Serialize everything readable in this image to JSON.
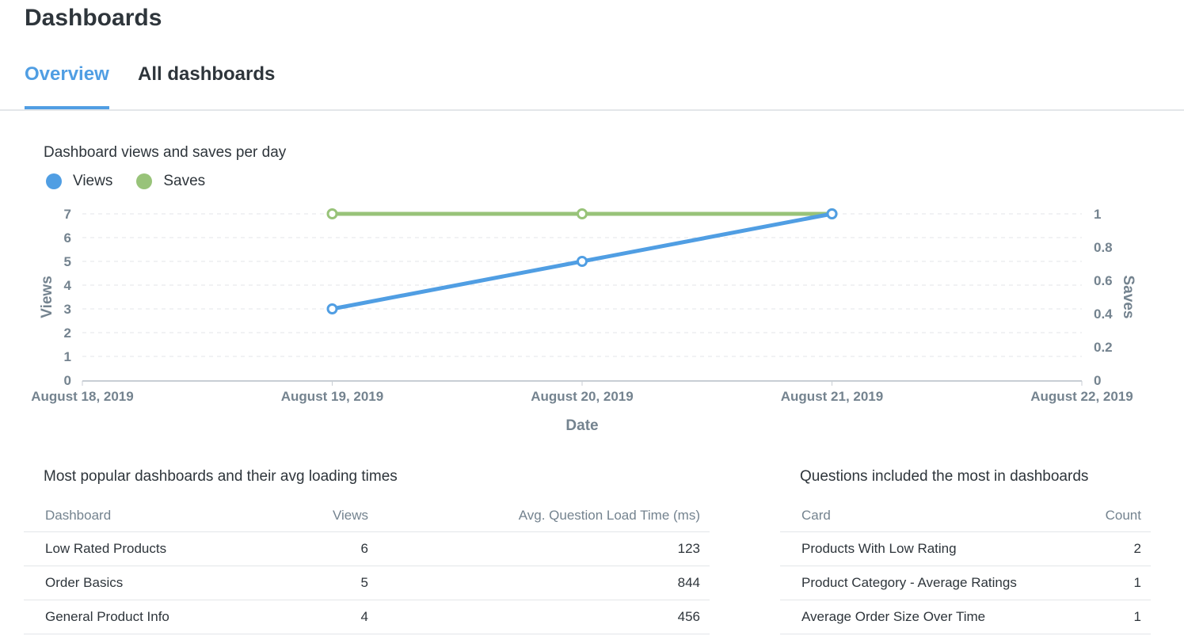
{
  "header": {
    "title": "Dashboards"
  },
  "tabs": [
    {
      "label": "Overview"
    },
    {
      "label": "All dashboards"
    }
  ],
  "chart_section": {
    "title": "Dashboard views and saves per day"
  },
  "colors": {
    "views": "#509ee3",
    "saves": "#98c379",
    "text": "#2e353b",
    "muted": "#74838f",
    "grid": "#e3e6e9"
  },
  "chart_data": {
    "type": "line",
    "title": "Dashboard views and saves per day",
    "xlabel": "Date",
    "x": [
      "August 18, 2019",
      "August 19, 2019",
      "August 20, 2019",
      "August 21, 2019",
      "August 22, 2019"
    ],
    "series": [
      {
        "name": "Views",
        "axis": "left",
        "x": [
          "August 19, 2019",
          "August 20, 2019",
          "August 21, 2019"
        ],
        "values": [
          3,
          5,
          7
        ]
      },
      {
        "name": "Saves",
        "axis": "right",
        "x": [
          "August 19, 2019",
          "August 20, 2019",
          "August 21, 2019"
        ],
        "values": [
          1,
          1,
          1
        ]
      }
    ],
    "y_left": {
      "label": "Views",
      "lim": [
        0,
        7
      ],
      "ticks": [
        "0",
        "1",
        "2",
        "3",
        "4",
        "5",
        "6",
        "7"
      ]
    },
    "y_right": {
      "label": "Saves",
      "lim": [
        0,
        1
      ],
      "ticks": [
        "0",
        "0.2",
        "0.4",
        "0.6",
        "0.8",
        "1"
      ]
    },
    "legend": "top-left",
    "grid": true
  },
  "popular": {
    "title": "Most popular dashboards and their avg loading times",
    "columns": [
      "Dashboard",
      "Views",
      "Avg. Question Load Time (ms)"
    ],
    "rows": [
      {
        "name": "Low Rated Products",
        "views": "6",
        "load": "123"
      },
      {
        "name": "Order Basics",
        "views": "5",
        "load": "844"
      },
      {
        "name": "General Product Info",
        "views": "4",
        "load": "456"
      }
    ]
  },
  "questions": {
    "title": "Questions included the most in dashboards",
    "columns": [
      "Card",
      "Count"
    ],
    "rows": [
      {
        "card": "Products With Low Rating",
        "count": "2"
      },
      {
        "card": "Product Category - Average Ratings",
        "count": "1"
      },
      {
        "card": "Average Order Size Over Time",
        "count": "1"
      }
    ]
  }
}
